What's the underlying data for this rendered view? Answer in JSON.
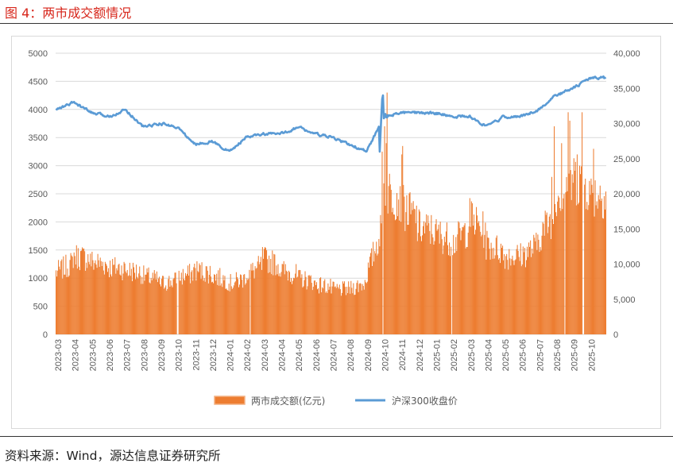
{
  "figure_title": "图 4：两市成交额情况",
  "source": "资料来源：Wind，源达信息证券研究所",
  "colors": {
    "bar": "#ED7D31",
    "line": "#5B9BD5",
    "grid": "#d9d9d9",
    "title": "#d7261b"
  },
  "chart_data": {
    "type": "bar+line",
    "title": "",
    "legend_position": "bottom",
    "grid": true,
    "left_axis": {
      "min": 0,
      "max": 5000,
      "ticks": [
        "0",
        "500",
        "1000",
        "1500",
        "2000",
        "2500",
        "3000",
        "3500",
        "4000",
        "4500",
        "5000"
      ]
    },
    "right_axis": {
      "min": 0,
      "max": 40000,
      "ticks": [
        "0",
        "5,000",
        "10,000",
        "15,000",
        "20,000",
        "25,000",
        "30,000",
        "35,000",
        "40,000"
      ]
    },
    "categories": [
      "2023-03",
      "2023-04",
      "2023-05",
      "2023-06",
      "2023-07",
      "2023-08",
      "2023-09",
      "2023-10",
      "2023-11",
      "2023-12",
      "2024-01",
      "2024-02",
      "2024-03",
      "2024-04",
      "2024-05",
      "2024-06",
      "2024-07",
      "2024-08",
      "2024-09",
      "2024-10",
      "2024-11",
      "2024-12",
      "2025-01",
      "2025-02",
      "2025-03",
      "2025-04",
      "2025-05",
      "2025-06",
      "2025-07",
      "2025-08",
      "2025-09",
      "2025-10"
    ],
    "series": [
      {
        "name": "两市成交额(亿元)",
        "type": "bar",
        "axis": "left",
        "monthly_levels": [
          1100,
          1400,
          1300,
          1200,
          1150,
          1050,
          900,
          1000,
          1150,
          1050,
          900,
          1050,
          1350,
          1150,
          1000,
          900,
          800,
          800,
          1000,
          2600,
          2300,
          1900,
          1800,
          1600,
          2100,
          1600,
          1400,
          1400,
          1700,
          2500,
          2800,
          2500
        ],
        "noted_peaks": [
          {
            "date": "2024-10-08",
            "value": 4300
          },
          {
            "date": "2025-08-25",
            "value": 3950
          },
          {
            "date": "2025-09-18",
            "value": 3950
          },
          {
            "date": "2025-10-09",
            "value": 3300
          }
        ]
      },
      {
        "name": "沪深300收盘价",
        "type": "line",
        "axis": "right",
        "monthly_levels": [
          32000,
          33000,
          31500,
          31000,
          32000,
          29500,
          30000,
          29500,
          27000,
          27500,
          26000,
          28000,
          28500,
          28500,
          29500,
          28500,
          28000,
          27000,
          26000,
          31000,
          31500,
          31500,
          31500,
          31000,
          31000,
          29500,
          31000,
          31000,
          32000,
          34000,
          35000,
          36500
        ]
      }
    ]
  },
  "legend": {
    "bar_label": "两市成交额(亿元)",
    "line_label": "沪深300收盘价"
  }
}
